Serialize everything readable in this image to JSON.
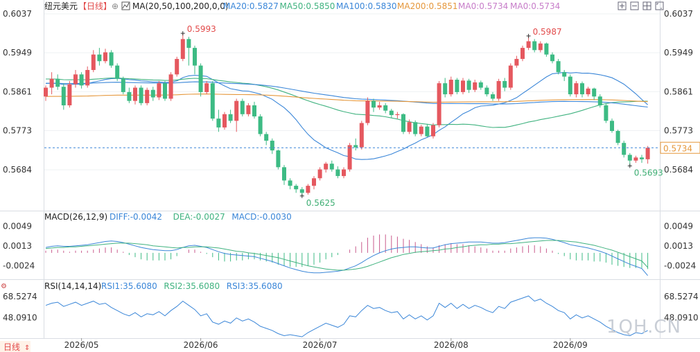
{
  "header": {
    "symbol": "纽元美元",
    "period": "【日线】",
    "ma_label": "MA(20,50,100,200,0,0)",
    "ma_values": [
      {
        "text": "MA20:0.5827",
        "color": "#3a86d8"
      },
      {
        "text": "MA50:0.5850",
        "color": "#3fb27f"
      },
      {
        "text": "MA100:0.5830",
        "color": "#3a86d8"
      },
      {
        "text": "MA200:0.5851",
        "color": "#e5973b"
      },
      {
        "text": "MA0:0.5734",
        "color": "#c77dc9"
      },
      {
        "text": "MA0:0.5734",
        "color": "#c77dc9"
      }
    ],
    "toolbar_icons": [
      "expand-icon",
      "shrink-icon",
      "grid-icon",
      "fullscreen-icon"
    ]
  },
  "macd_header": {
    "label": "MACD(26,12,9)",
    "values": [
      {
        "text": "DIFF:-0.0042",
        "color": "#3a86d8"
      },
      {
        "text": "DEA:-0.0027",
        "color": "#3fb27f"
      },
      {
        "text": "MACD:-0.0030",
        "color": "#3a86d8"
      }
    ]
  },
  "rsi_header": {
    "label": "RSI(14,14,14)",
    "values": [
      {
        "text": "RSI1:35.6080",
        "color": "#3a86d8"
      },
      {
        "text": "RSI2:35.6080",
        "color": "#3fb27f"
      },
      {
        "text": "RSI3:35.6080",
        "color": "#3a86d8"
      }
    ]
  },
  "period_tab": "日线",
  "watermark": "1QH.CN",
  "chart_data": {
    "type": "candlestick",
    "price_ticks": [
      "0.6037",
      "0.5949",
      "0.5861",
      "0.5773",
      "0.5684"
    ],
    "price_ylim": [
      0.5598,
      0.6037
    ],
    "last_price": "0.5734",
    "annotations": [
      {
        "text": "0.5993",
        "kind": "high"
      },
      {
        "text": "0.5987",
        "kind": "high"
      },
      {
        "text": "0.5625",
        "kind": "low"
      },
      {
        "text": "0.5693",
        "kind": "low"
      }
    ],
    "x_labels": [
      "2026/05",
      "2026/06",
      "2026/07",
      "2026/08",
      "2026/09"
    ],
    "x_label_index": [
      6,
      26,
      46,
      68,
      88
    ],
    "candles": [
      [
        0.585,
        0.587,
        0.584,
        0.5875
      ],
      [
        0.587,
        0.589,
        0.5855,
        0.5905
      ],
      [
        0.589,
        0.5872,
        0.5865,
        0.59
      ],
      [
        0.5872,
        0.583,
        0.582,
        0.588
      ],
      [
        0.583,
        0.5878,
        0.5825,
        0.5885
      ],
      [
        0.5878,
        0.59,
        0.587,
        0.591
      ],
      [
        0.59,
        0.5875,
        0.5868,
        0.5905
      ],
      [
        0.5875,
        0.591,
        0.587,
        0.5918
      ],
      [
        0.591,
        0.5945,
        0.5905,
        0.5955
      ],
      [
        0.5945,
        0.593,
        0.592,
        0.596
      ],
      [
        0.593,
        0.595,
        0.5925,
        0.5958
      ],
      [
        0.595,
        0.592,
        0.5915,
        0.5955
      ],
      [
        0.592,
        0.589,
        0.5885,
        0.5925
      ],
      [
        0.589,
        0.586,
        0.5855,
        0.5895
      ],
      [
        0.586,
        0.584,
        0.5835,
        0.587
      ],
      [
        0.584,
        0.587,
        0.5832,
        0.5875
      ],
      [
        0.587,
        0.5835,
        0.583,
        0.5875
      ],
      [
        0.5835,
        0.5865,
        0.583,
        0.587
      ],
      [
        0.5865,
        0.5848,
        0.584,
        0.5872
      ],
      [
        0.5848,
        0.588,
        0.5842,
        0.5885
      ],
      [
        0.588,
        0.5845,
        0.584,
        0.5885
      ],
      [
        0.5845,
        0.59,
        0.584,
        0.5905
      ],
      [
        0.59,
        0.5935,
        0.5895,
        0.594
      ],
      [
        0.5935,
        0.598,
        0.593,
        0.5993
      ],
      [
        0.598,
        0.596,
        0.592,
        0.5985
      ],
      [
        0.596,
        0.592,
        0.59,
        0.5965
      ],
      [
        0.592,
        0.586,
        0.585,
        0.5925
      ],
      [
        0.586,
        0.588,
        0.5855,
        0.5885
      ],
      [
        0.588,
        0.58,
        0.5795,
        0.5885
      ],
      [
        0.58,
        0.578,
        0.577,
        0.582
      ],
      [
        0.578,
        0.581,
        0.5775,
        0.5815
      ],
      [
        0.581,
        0.5795,
        0.579,
        0.582
      ],
      [
        0.5795,
        0.584,
        0.577,
        0.5845
      ],
      [
        0.584,
        0.581,
        0.5805,
        0.5845
      ],
      [
        0.581,
        0.583,
        0.5805,
        0.5835
      ],
      [
        0.583,
        0.5805,
        0.58,
        0.5838
      ],
      [
        0.5805,
        0.5765,
        0.576,
        0.581
      ],
      [
        0.5765,
        0.575,
        0.574,
        0.577
      ],
      [
        0.575,
        0.5728,
        0.572,
        0.5755
      ],
      [
        0.5728,
        0.569,
        0.5685,
        0.573
      ],
      [
        0.569,
        0.566,
        0.565,
        0.5695
      ],
      [
        0.566,
        0.5648,
        0.564,
        0.5665
      ],
      [
        0.5648,
        0.564,
        0.5632,
        0.5652
      ],
      [
        0.564,
        0.5632,
        0.5625,
        0.5645
      ],
      [
        0.5632,
        0.5648,
        0.5628,
        0.5652
      ],
      [
        0.5648,
        0.5665,
        0.564,
        0.567
      ],
      [
        0.5665,
        0.5685,
        0.566,
        0.569
      ],
      [
        0.5685,
        0.5698,
        0.5678,
        0.5702
      ],
      [
        0.5698,
        0.5685,
        0.568,
        0.5705
      ],
      [
        0.5685,
        0.567,
        0.5665,
        0.5692
      ],
      [
        0.567,
        0.5685,
        0.5665,
        0.569
      ],
      [
        0.5685,
        0.574,
        0.568,
        0.5745
      ],
      [
        0.574,
        0.5735,
        0.5728,
        0.5755
      ],
      [
        0.5735,
        0.579,
        0.573,
        0.5795
      ],
      [
        0.579,
        0.584,
        0.5785,
        0.5848
      ],
      [
        0.584,
        0.5825,
        0.5815,
        0.5845
      ],
      [
        0.5825,
        0.583,
        0.582,
        0.5838
      ],
      [
        0.583,
        0.5818,
        0.5812,
        0.5835
      ],
      [
        0.5818,
        0.5808,
        0.5802,
        0.5822
      ],
      [
        0.5808,
        0.581,
        0.58,
        0.5815
      ],
      [
        0.581,
        0.577,
        0.5765,
        0.5812
      ],
      [
        0.577,
        0.5792,
        0.5765,
        0.5798
      ],
      [
        0.5792,
        0.5765,
        0.576,
        0.5796
      ],
      [
        0.5765,
        0.5782,
        0.576,
        0.5786
      ],
      [
        0.5782,
        0.576,
        0.5758,
        0.5788
      ],
      [
        0.576,
        0.5785,
        0.5755,
        0.579
      ],
      [
        0.5785,
        0.588,
        0.578,
        0.5885
      ],
      [
        0.588,
        0.5855,
        0.5848,
        0.5892
      ],
      [
        0.5855,
        0.5888,
        0.585,
        0.5895
      ],
      [
        0.5888,
        0.586,
        0.5855,
        0.5892
      ],
      [
        0.586,
        0.5886,
        0.5855,
        0.5892
      ],
      [
        0.5886,
        0.5865,
        0.5858,
        0.589
      ],
      [
        0.5865,
        0.5882,
        0.586,
        0.5888
      ],
      [
        0.5882,
        0.587,
        0.5865,
        0.5886
      ],
      [
        0.587,
        0.5855,
        0.585,
        0.5875
      ],
      [
        0.5855,
        0.5845,
        0.584,
        0.586
      ],
      [
        0.5845,
        0.5885,
        0.584,
        0.589
      ],
      [
        0.5885,
        0.587,
        0.5862,
        0.5892
      ],
      [
        0.587,
        0.592,
        0.5865,
        0.5925
      ],
      [
        0.592,
        0.5935,
        0.5915,
        0.5942
      ],
      [
        0.5935,
        0.596,
        0.593,
        0.5965
      ],
      [
        0.596,
        0.5975,
        0.5955,
        0.5987
      ],
      [
        0.5975,
        0.5955,
        0.595,
        0.598
      ],
      [
        0.5955,
        0.597,
        0.595,
        0.5975
      ],
      [
        0.597,
        0.5945,
        0.594,
        0.5972
      ],
      [
        0.5945,
        0.593,
        0.5925,
        0.595
      ],
      [
        0.593,
        0.5905,
        0.59,
        0.5935
      ],
      [
        0.5905,
        0.5895,
        0.5885,
        0.591
      ],
      [
        0.5895,
        0.5855,
        0.585,
        0.59
      ],
      [
        0.5855,
        0.588,
        0.5848,
        0.5885
      ],
      [
        0.588,
        0.5855,
        0.5848,
        0.5884
      ],
      [
        0.5855,
        0.5868,
        0.585,
        0.5872
      ],
      [
        0.5868,
        0.585,
        0.5842,
        0.587
      ],
      [
        0.585,
        0.583,
        0.5825,
        0.5855
      ],
      [
        0.583,
        0.5795,
        0.579,
        0.5835
      ],
      [
        0.5795,
        0.5772,
        0.5768,
        0.58
      ],
      [
        0.5772,
        0.5745,
        0.574,
        0.5775
      ],
      [
        0.5745,
        0.5718,
        0.5712,
        0.575
      ],
      [
        0.5718,
        0.5705,
        0.5693,
        0.5722
      ],
      [
        0.5705,
        0.5712,
        0.57,
        0.5716
      ],
      [
        0.5712,
        0.5708,
        0.57,
        0.5718
      ],
      [
        0.5708,
        0.5734,
        0.5698,
        0.5738
      ]
    ],
    "ma_series": [
      {
        "name": "MA20",
        "color": "#3a86d8"
      },
      {
        "name": "MA50",
        "color": "#3fb27f"
      },
      {
        "name": "MA100",
        "color": "#3a86d8"
      },
      {
        "name": "MA200",
        "color": "#e5973b"
      }
    ],
    "macd": {
      "ticks": [
        "0.0049",
        "0.0013",
        "-0.0024"
      ],
      "ylim": [
        -0.0045,
        0.0055
      ],
      "diff": [
        0.001,
        0.0012,
        0.0013,
        0.0012,
        0.0012,
        0.0013,
        0.0014,
        0.0015,
        0.0017,
        0.0019,
        0.0021,
        0.0022,
        0.0021,
        0.0019,
        0.0016,
        0.0013,
        0.001,
        0.0008,
        0.0006,
        0.0005,
        0.0004,
        0.0004,
        0.0006,
        0.001,
        0.0013,
        0.0014,
        0.0012,
        0.001,
        0.0006,
        0.0002,
        -0.0001,
        -0.0003,
        -0.0004,
        -0.0005,
        -0.0006,
        -0.0007,
        -0.001,
        -0.0013,
        -0.0016,
        -0.002,
        -0.0024,
        -0.0028,
        -0.0031,
        -0.0034,
        -0.0036,
        -0.0037,
        -0.0037,
        -0.0036,
        -0.0035,
        -0.0034,
        -0.0032,
        -0.0028,
        -0.0024,
        -0.0018,
        -0.0011,
        -0.0005,
        0.0,
        0.0004,
        0.0007,
        0.0009,
        0.001,
        0.0011,
        0.0011,
        0.001,
        0.0009,
        0.0009,
        0.0012,
        0.0015,
        0.0017,
        0.0018,
        0.0019,
        0.002,
        0.002,
        0.002,
        0.0019,
        0.0018,
        0.0018,
        0.0019,
        0.0021,
        0.0023,
        0.0025,
        0.0027,
        0.0028,
        0.0028,
        0.0027,
        0.0025,
        0.0022,
        0.0019,
        0.0015,
        0.0013,
        0.0011,
        0.0009,
        0.0006,
        0.0003,
        -0.0001,
        -0.0006,
        -0.0011,
        -0.0016,
        -0.0021,
        -0.0025,
        -0.0029,
        -0.0042
      ],
      "dea": [
        0.0008,
        0.0009,
        0.001,
        0.001,
        0.0011,
        0.0011,
        0.0012,
        0.0013,
        0.0014,
        0.0015,
        0.0016,
        0.0017,
        0.0018,
        0.0018,
        0.0018,
        0.0017,
        0.0016,
        0.0015,
        0.0013,
        0.0012,
        0.0011,
        0.001,
        0.0009,
        0.001,
        0.001,
        0.0011,
        0.0011,
        0.0011,
        0.001,
        0.0009,
        0.0007,
        0.0005,
        0.0003,
        0.0002,
        0.0,
        -0.0001,
        -0.0003,
        -0.0005,
        -0.0007,
        -0.0009,
        -0.0012,
        -0.0015,
        -0.0018,
        -0.0021,
        -0.0024,
        -0.0026,
        -0.0028,
        -0.003,
        -0.0031,
        -0.0032,
        -0.0032,
        -0.0031,
        -0.003,
        -0.0028,
        -0.0025,
        -0.0021,
        -0.0017,
        -0.0013,
        -0.0009,
        -0.0006,
        -0.0003,
        -0.0001,
        0.0001,
        0.0002,
        0.0003,
        0.0004,
        0.0005,
        0.0007,
        0.0008,
        0.001,
        0.0011,
        0.0013,
        0.0014,
        0.0015,
        0.0015,
        0.0016,
        0.0016,
        0.0017,
        0.0017,
        0.0018,
        0.0019,
        0.002,
        0.0021,
        0.0022,
        0.0023,
        0.0023,
        0.0023,
        0.0022,
        0.0021,
        0.002,
        0.0018,
        0.0016,
        0.0014,
        0.0011,
        0.0008,
        0.0005,
        0.0001,
        -0.0003,
        -0.0007,
        -0.0011,
        -0.0015,
        -0.0027
      ]
    },
    "rsi": {
      "ticks": [
        "68.5274",
        "48.0910"
      ],
      "ylim": [
        30,
        75
      ],
      "values": [
        60,
        62,
        63,
        59,
        61,
        63,
        60,
        62,
        64,
        61,
        62,
        58,
        55,
        52,
        50,
        53,
        49,
        52,
        51,
        54,
        50,
        55,
        59,
        64,
        60,
        56,
        50,
        52,
        44,
        42,
        45,
        43,
        48,
        45,
        47,
        44,
        40,
        38,
        36,
        33,
        31,
        32,
        31,
        30,
        34,
        37,
        40,
        43,
        41,
        39,
        42,
        50,
        49,
        55,
        60,
        57,
        58,
        55,
        53,
        54,
        47,
        51,
        47,
        50,
        46,
        50,
        62,
        58,
        62,
        57,
        61,
        57,
        60,
        58,
        55,
        53,
        59,
        57,
        63,
        65,
        67,
        69,
        64,
        66,
        62,
        59,
        55,
        53,
        47,
        51,
        48,
        50,
        47,
        44,
        40,
        37,
        34,
        32,
        31,
        34,
        33,
        36
      ]
    }
  }
}
